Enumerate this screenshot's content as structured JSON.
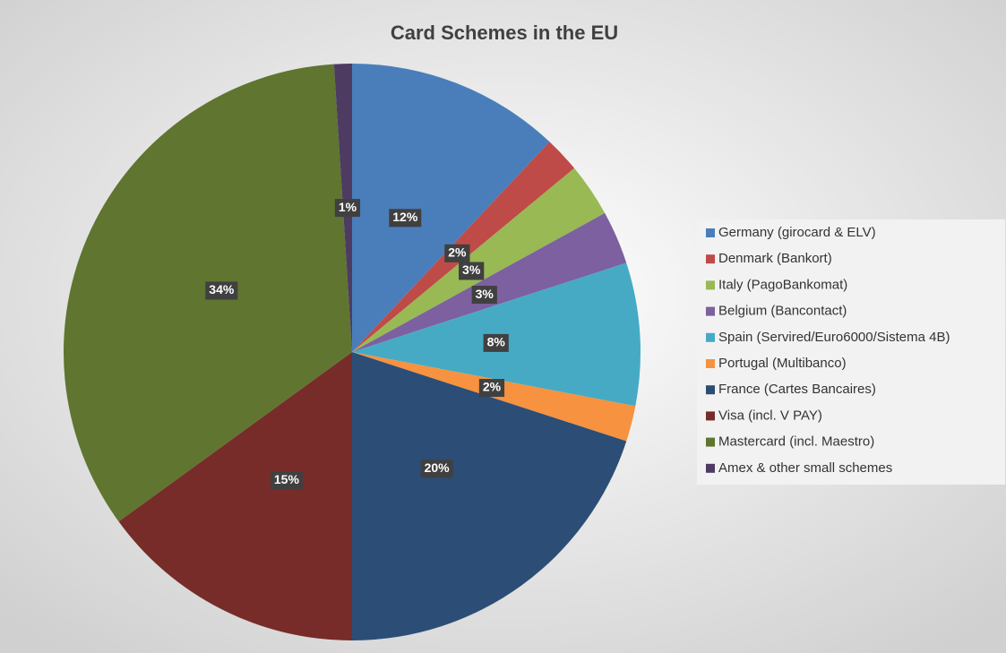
{
  "chart_data": {
    "type": "pie",
    "title": "Card Schemes in the EU",
    "categories": [
      "Germany (girocard & ELV)",
      "Denmark (Bankort)",
      "Italy (PagoBankomat)",
      "Belgium (Bancontact)",
      "Spain (Servired/Euro6000/Sistema 4B)",
      "Portugal (Multibanco)",
      "France (Cartes Bancaires)",
      "Visa (incl. V PAY)",
      "Mastercard (incl. Maestro)",
      "Amex & other small schemes"
    ],
    "values": [
      12,
      2,
      3,
      3,
      8,
      2,
      20,
      15,
      34,
      1
    ],
    "value_labels": [
      "12%",
      "2%",
      "3%",
      "3%",
      "8%",
      "2%",
      "20%",
      "15%",
      "34%",
      "1%"
    ],
    "colors": [
      "#4a7ebb",
      "#be4b48",
      "#98b954",
      "#7d60a0",
      "#46aac5",
      "#f69240",
      "#2c4d75",
      "#772c2a",
      "#5f7530",
      "#4d3b62"
    ],
    "legend": "right"
  }
}
